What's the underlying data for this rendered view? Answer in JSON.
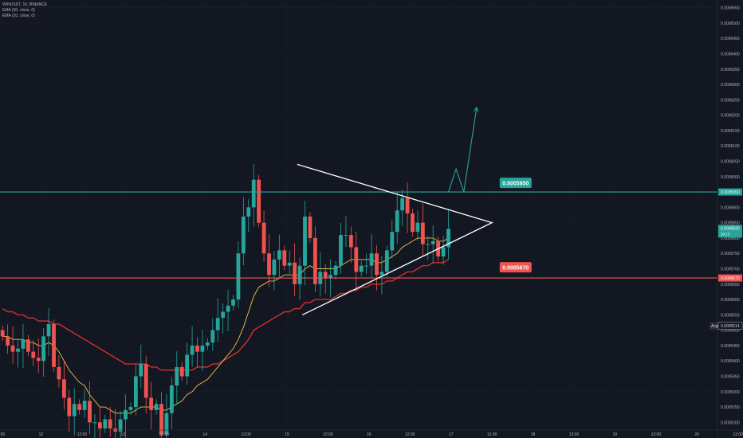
{
  "legend": {
    "symbol_line": "WINUSDT, 1h, BINANCE",
    "ema50_line": "EMA (50, close, 0)",
    "ema20_line": "EMA (20, close, 0)"
  },
  "colors": {
    "background": "#131722",
    "grid": "#1c2030",
    "up": "#26a69a",
    "down": "#ef5350",
    "ema50": "#d32f2f",
    "ema20": "#f6c343",
    "resistance": "#26a69a",
    "support": "#ef5350",
    "triangle": "#ffffff",
    "arrow": "#26a69a",
    "axis_text": "#b2b5be"
  },
  "annotations": {
    "resistance_label": "0.0005950",
    "support_label": "0.0005670",
    "resistance_axis_tag": "0.0005950",
    "support_axis_tag": "0.0005670",
    "price_tag": "0.0005830",
    "price_tag_sub": "29:13",
    "avg_tag": "Avg",
    "avg_value": "0.0005514"
  },
  "chart_data": {
    "type": "candlestick",
    "title": "WINUSDT, 1h, BINANCE",
    "ylim": [
      0.0005175,
      0.0006575
    ],
    "xlim": [
      0,
      140
    ],
    "y_ticks": [
      "0.0006550",
      "0.0006500",
      "0.0006450",
      "0.0006400",
      "0.0006350",
      "0.0006300",
      "0.0006250",
      "0.0006200",
      "0.0006150",
      "0.0006100",
      "0.0006050",
      "0.0006000",
      "0.0005950",
      "0.0005900",
      "0.0005850",
      "0.0005800",
      "0.0005750",
      "0.0005700",
      "0.0005650",
      "0.0005600",
      "0.0005550",
      "0.0005500",
      "0.0005450",
      "0.0005400",
      "0.0005350",
      "0.0005300",
      "0.0005250",
      "0.0005200"
    ],
    "x_ticks": [
      {
        "label": "12:00",
        "t": 0
      },
      {
        "label": "12",
        "t": 8
      },
      {
        "label": "12:00",
        "t": 16
      },
      {
        "label": "13",
        "t": 24
      },
      {
        "label": "12:00",
        "t": 32
      },
      {
        "label": "14",
        "t": 40
      },
      {
        "label": "12:00",
        "t": 48
      },
      {
        "label": "15",
        "t": 56
      },
      {
        "label": "12:00",
        "t": 64
      },
      {
        "label": "16",
        "t": 72
      },
      {
        "label": "12:00",
        "t": 80
      },
      {
        "label": "17",
        "t": 88
      },
      {
        "label": "12:00",
        "t": 96
      },
      {
        "label": "18",
        "t": 104
      },
      {
        "label": "12:00",
        "t": 112
      },
      {
        "label": "19",
        "t": 120
      },
      {
        "label": "12:00",
        "t": 128
      },
      {
        "label": "20",
        "t": 136
      },
      {
        "label": "12:00",
        "t": 144
      }
    ],
    "resistance": 0.000595,
    "support": 0.000567,
    "closes": [
      0.000548,
      0.000545,
      0.000543,
      0.000544,
      0.000547,
      0.000543,
      0.000541,
      0.00054,
      0.000548,
      0.000552,
      0.000538,
      0.000534,
      0.000528,
      0.000522,
      0.000526,
      0.000524,
      0.000527,
      0.00052,
      0.00052,
      0.000518,
      0.000521,
      0.000518,
      0.000517,
      0.000521,
      0.000524,
      0.000525,
      0.000535,
      0.000539,
      0.000528,
      0.000524,
      0.000526,
      0.000516,
      0.000523,
      0.000532,
      0.000538,
      0.000535,
      0.000542,
      0.000545,
      0.000543,
      0.000545,
      0.000546,
      0.00055,
      0.000554,
      0.000556,
      0.000558,
      0.00056,
      0.000575,
      0.000587,
      0.00059,
      0.000599,
      0.000585,
      0.000575,
      0.000568,
      0.000573,
      0.000576,
      0.000571,
      0.000572,
      0.000565,
      0.000571,
      0.000587,
      0.00058,
      0.000565,
      0.000569,
      0.000567,
      0.000568,
      0.000571,
      0.000581,
      0.000581,
      0.000577,
      0.000569,
      0.000571,
      0.000571,
      0.000575,
      0.000568,
      0.000569,
      0.000576,
      0.000582,
      0.000589,
      0.000593,
      0.000588,
      0.000582,
      0.000585,
      0.000578,
      0.000578,
      0.000579,
      0.000574,
      0.000577,
      0.000583
    ],
    "ema20": [
      0.000548,
      0.000548,
      0.000547,
      0.000547,
      0.000547,
      0.000546,
      0.000546,
      0.000545,
      0.000545,
      0.000546,
      0.000545,
      0.000543,
      0.00054,
      0.000537,
      0.000535,
      0.000533,
      0.000532,
      0.000529,
      0.000527,
      0.000525,
      0.000525,
      0.000524,
      0.000523,
      0.000523,
      0.000523,
      0.000523,
      0.000524,
      0.000525,
      0.000525,
      0.000525,
      0.000525,
      0.000524,
      0.000524,
      0.000525,
      0.000526,
      0.000527,
      0.000529,
      0.00053,
      0.000532,
      0.000533,
      0.000534,
      0.000536,
      0.000538,
      0.00054,
      0.000542,
      0.000544,
      0.000547,
      0.000551,
      0.000556,
      0.000561,
      0.000564,
      0.000565,
      0.000566,
      0.000566,
      0.000567,
      0.000568,
      0.000568,
      0.000568,
      0.000568,
      0.00057,
      0.000571,
      0.00057,
      0.00057,
      0.00057,
      0.00057,
      0.00057,
      0.000571,
      0.000572,
      0.000573,
      0.000573,
      0.000573,
      0.000573,
      0.000573,
      0.000572,
      0.000572,
      0.000573,
      0.000574,
      0.000575,
      0.000577,
      0.000578,
      0.000579,
      0.00058,
      0.00058,
      0.00058,
      0.00058,
      0.000579,
      0.000579,
      0.00058
    ],
    "ema50": [
      0.000557,
      0.000556,
      0.000556,
      0.000555,
      0.000555,
      0.000554,
      0.000554,
      0.000553,
      0.000553,
      0.000553,
      0.000552,
      0.000552,
      0.000551,
      0.00055,
      0.000549,
      0.000548,
      0.000547,
      0.000546,
      0.000545,
      0.000544,
      0.000543,
      0.000542,
      0.000541,
      0.00054,
      0.000539,
      0.000539,
      0.000539,
      0.000539,
      0.000539,
      0.000538,
      0.000538,
      0.000537,
      0.000537,
      0.000537,
      0.000537,
      0.000537,
      0.000537,
      0.000537,
      0.000538,
      0.000538,
      0.000538,
      0.000539,
      0.000539,
      0.00054,
      0.000541,
      0.000542,
      0.000543,
      0.000545,
      0.000547,
      0.00055,
      0.000551,
      0.000552,
      0.000553,
      0.000554,
      0.000555,
      0.000556,
      0.000556,
      0.000557,
      0.000557,
      0.000559,
      0.000559,
      0.00056,
      0.00056,
      0.00056,
      0.00056,
      0.000561,
      0.000562,
      0.000562,
      0.000563,
      0.000563,
      0.000564,
      0.000564,
      0.000565,
      0.000565,
      0.000565,
      0.000566,
      0.000566,
      0.000567,
      0.000568,
      0.000569,
      0.000569,
      0.00057,
      0.000571,
      0.000571,
      0.000572,
      0.000572,
      0.000572,
      0.000573
    ]
  }
}
